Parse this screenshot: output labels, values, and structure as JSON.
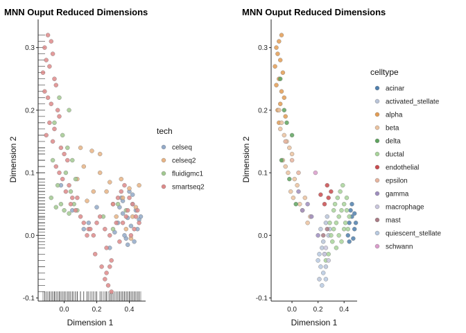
{
  "chart_data": [
    {
      "type": "scatter",
      "title": "MNN Ouput Reduced Dimensions",
      "xlabel": "Dimension 1",
      "ylabel": "Dimension 2",
      "xlim": [
        -0.16,
        0.5
      ],
      "ylim": [
        -0.105,
        0.345
      ],
      "xticks": [
        0.0,
        0.2,
        0.4
      ],
      "xtick_labels": [
        "0.0",
        "0.2",
        "0.4"
      ],
      "yticks": [
        -0.1,
        0.0,
        0.1,
        0.2,
        0.3
      ],
      "ytick_labels": [
        "-0.1",
        "0.0",
        "0.1",
        "0.2",
        "0.3"
      ],
      "rug": true,
      "grid": false,
      "legend_position": "right",
      "legend_title": "tech",
      "series": [
        {
          "name": "celseq",
          "color": "#92A9C8",
          "x": [
            0.33,
            0.36,
            0.39,
            0.42,
            0.45,
            0.38,
            0.41,
            0.35,
            0.44,
            0.47,
            0.4,
            0.37,
            0.43,
            0.34,
            0.46,
            0.2,
            0.15,
            0.12,
            0.05,
            -0.02,
            0.28,
            0.31,
            0.36,
            0.42,
            0.39
          ],
          "y": [
            0.02,
            0.035,
            0.028,
            0.05,
            0.01,
            -0.005,
            0.015,
            0.06,
            0.04,
            0.03,
            0.07,
            0.0,
            -0.01,
            0.045,
            0.025,
            0.045,
            0.02,
            0.01,
            0.04,
            0.08,
            -0.02,
            0.005,
            0.055,
            0.065,
            -0.015
          ]
        },
        {
          "name": "celseq2",
          "color": "#E8B485",
          "x": [
            0.36,
            0.4,
            0.44,
            0.38,
            0.42,
            0.3,
            0.26,
            0.22,
            0.17,
            0.12,
            0.08,
            0.18,
            0.22,
            0.14,
            0.32,
            0.46,
            0.35,
            0.41,
            0.1,
            0.28
          ],
          "y": [
            0.06,
            0.075,
            0.045,
            0.01,
            0.03,
            0.05,
            0.07,
            0.13,
            0.135,
            0.11,
            0.09,
            0.07,
            0.1,
            0.055,
            0.03,
            0.08,
            0.09,
            -0.005,
            0.14,
            0.085
          ]
        },
        {
          "name": "fluidigmc1",
          "color": "#A2C990",
          "x": [
            -0.05,
            -0.02,
            0.0,
            0.03,
            -0.08,
            -0.04,
            0.06,
            0.02,
            -0.06,
            0.01,
            0.04,
            -0.03,
            0.08,
            -0.01,
            0.05,
            -0.07,
            0.03,
            0.07,
            0.24,
            0.3,
            0.38,
            0.33
          ],
          "y": [
            0.045,
            0.05,
            0.04,
            0.035,
            0.06,
            0.08,
            0.05,
            0.14,
            0.18,
            0.1,
            0.07,
            0.22,
            0.04,
            0.16,
            0.12,
            0.12,
            0.2,
            0.09,
            0.03,
            0.01,
            0.04,
            0.05
          ]
        },
        {
          "name": "smartseq2",
          "color": "#DE8A89",
          "x": [
            -0.12,
            -0.1,
            -0.08,
            -0.11,
            -0.09,
            -0.13,
            -0.07,
            -0.06,
            -0.05,
            -0.12,
            -0.1,
            -0.08,
            -0.04,
            -0.03,
            -0.09,
            -0.06,
            -0.11,
            -0.07,
            -0.02,
            0.0,
            0.02,
            -0.05,
            -0.03,
            -0.01,
            0.03,
            0.01,
            0.05,
            0.04,
            0.07,
            0.1,
            0.12,
            0.15,
            0.18,
            0.08,
            0.2,
            0.22,
            0.25,
            0.28,
            0.3,
            0.33,
            0.35,
            0.37,
            0.4,
            0.42,
            0.45,
            0.38,
            0.36,
            0.43,
            0.46,
            0.41,
            0.34,
            0.39,
            0.44,
            0.32,
            0.26,
            0.29,
            0.23,
            0.19,
            0.16,
            0.14,
            0.26,
            0.27,
            0.29,
            0.25,
            0.28
          ],
          "y": [
            0.3,
            0.32,
            0.31,
            0.28,
            0.27,
            0.26,
            0.29,
            0.25,
            0.24,
            0.23,
            0.22,
            0.21,
            0.2,
            0.19,
            0.18,
            0.17,
            0.16,
            0.15,
            0.14,
            0.13,
            0.12,
            0.11,
            0.1,
            0.09,
            0.08,
            0.07,
            0.06,
            0.05,
            0.04,
            0.03,
            0.02,
            0.01,
            0.0,
            0.06,
            0.02,
            0.03,
            0.01,
            0.0,
            0.05,
            0.06,
            0.07,
            0.08,
            0.06,
            0.05,
            0.04,
            0.03,
            0.02,
            0.01,
            0.02,
            0.0,
            -0.01,
            0.04,
            0.03,
            0.02,
            -0.02,
            -0.04,
            -0.05,
            -0.03,
            0.01,
            0.0,
            -0.06,
            -0.08,
            -0.09,
            -0.07,
            -0.05
          ]
        }
      ]
    },
    {
      "type": "scatter",
      "title": "MNN Ouput Reduced Dimensions",
      "xlabel": "Dimension 1",
      "ylabel": "Dimension 2",
      "xlim": [
        -0.16,
        0.5
      ],
      "ylim": [
        -0.105,
        0.345
      ],
      "xticks": [
        0.0,
        0.2,
        0.4
      ],
      "xtick_labels": [
        "0.0",
        "0.2",
        "0.4"
      ],
      "yticks": [
        -0.1,
        0.0,
        0.1,
        0.2,
        0.3
      ],
      "ytick_labels": [
        "-0.1",
        "0.0",
        "0.1",
        "0.2",
        "0.3"
      ],
      "rug": false,
      "grid": false,
      "legend_position": "right",
      "legend_title": "celltype",
      "series": [
        {
          "name": "acinar",
          "color": "#4F7FAD",
          "x": [
            0.44,
            0.46,
            0.48,
            0.47,
            0.45,
            0.49,
            0.43,
            0.46,
            0.48,
            0.44
          ],
          "y": [
            0.02,
            0.03,
            0.01,
            -0.005,
            0.04,
            0.02,
            0.0,
            0.05,
            0.035,
            -0.01
          ]
        },
        {
          "name": "activated_stellate",
          "color": "#B9C4D9",
          "x": [
            0.22,
            0.24,
            0.26,
            0.28,
            0.25,
            0.27,
            0.23,
            0.26,
            0.29,
            0.21
          ],
          "y": [
            0.01,
            -0.01,
            0.02,
            0.0,
            -0.03,
            0.03,
            -0.02,
            -0.05,
            0.01,
            -0.07
          ]
        },
        {
          "name": "alpha",
          "color": "#E39C53",
          "x": [
            -0.12,
            -0.1,
            -0.08,
            -0.11,
            -0.09,
            -0.13,
            -0.07,
            -0.1,
            -0.12,
            -0.08,
            -0.06,
            -0.09,
            -0.11,
            -0.05,
            -0.1
          ],
          "y": [
            0.3,
            0.31,
            0.32,
            0.29,
            0.28,
            0.27,
            0.26,
            0.25,
            0.24,
            0.23,
            0.22,
            0.21,
            0.2,
            0.19,
            0.18
          ]
        },
        {
          "name": "beta",
          "color": "#EBC29F",
          "x": [
            -0.1,
            -0.08,
            -0.06,
            -0.04,
            -0.02,
            0.0,
            -0.09,
            -0.07,
            -0.05,
            -0.03,
            0.02,
            0.04,
            -0.01,
            0.01,
            0.06,
            0.08,
            0.1,
            0.12,
            0.14
          ],
          "y": [
            0.2,
            0.18,
            0.16,
            0.15,
            0.14,
            0.13,
            0.17,
            0.12,
            0.11,
            0.1,
            0.09,
            0.08,
            0.07,
            0.06,
            0.05,
            0.04,
            0.06,
            0.02,
            0.03
          ]
        },
        {
          "name": "delta",
          "color": "#5EA35E",
          "x": [
            -0.09,
            -0.06,
            -0.04,
            -0.08,
            -0.02,
            0.0,
            0.03
          ],
          "y": [
            0.25,
            0.2,
            0.18,
            0.12,
            0.09,
            0.16,
            0.05
          ]
        },
        {
          "name": "ductal",
          "color": "#A8D49A",
          "x": [
            0.3,
            0.32,
            0.34,
            0.36,
            0.38,
            0.4,
            0.42,
            0.44,
            0.33,
            0.35,
            0.37,
            0.39,
            0.41,
            0.31,
            0.29,
            0.36,
            0.38,
            0.4,
            0.34,
            0.32,
            0.42,
            0.28,
            0.26,
            0.43
          ],
          "y": [
            0.0,
            0.01,
            0.02,
            0.03,
            0.04,
            0.05,
            0.06,
            0.03,
            0.05,
            0.06,
            0.07,
            0.08,
            0.02,
            -0.01,
            0.02,
            0.0,
            -0.01,
            0.01,
            -0.02,
            0.04,
            0.04,
            -0.03,
            -0.04,
            0.01
          ]
        },
        {
          "name": "endothelial",
          "color": "#C94B4E",
          "x": [
            0.25,
            0.28,
            0.3,
            0.27,
            0.22
          ],
          "y": [
            0.05,
            0.06,
            0.07,
            0.08,
            0.065
          ]
        },
        {
          "name": "epsilon",
          "color": "#E7B49E",
          "x": [
            -0.05,
            0.0,
            0.05
          ],
          "y": [
            0.15,
            0.12,
            0.1
          ]
        },
        {
          "name": "gamma",
          "color": "#9E8DBE",
          "x": [
            0.05,
            0.08,
            0.12,
            0.15,
            0.2
          ],
          "y": [
            0.07,
            0.04,
            0.05,
            0.03,
            0.0
          ]
        },
        {
          "name": "macrophage",
          "color": "#C9C6DD",
          "x": [
            0.25,
            0.28,
            0.26
          ],
          "y": [
            -0.03,
            -0.04,
            -0.02
          ]
        },
        {
          "name": "mast",
          "color": "#A97A84",
          "x": [
            0.24,
            0.27
          ],
          "y": [
            0.0,
            0.01
          ]
        },
        {
          "name": "quiescent_stellate",
          "color": "#B7C9E0",
          "x": [
            0.2,
            0.22,
            0.24,
            0.26,
            0.23,
            0.21
          ],
          "y": [
            -0.04,
            -0.05,
            -0.06,
            -0.07,
            -0.08,
            -0.03
          ]
        },
        {
          "name": "schwann",
          "color": "#DA9CCB",
          "x": [
            0.18
          ],
          "y": [
            0.1
          ]
        }
      ]
    }
  ]
}
